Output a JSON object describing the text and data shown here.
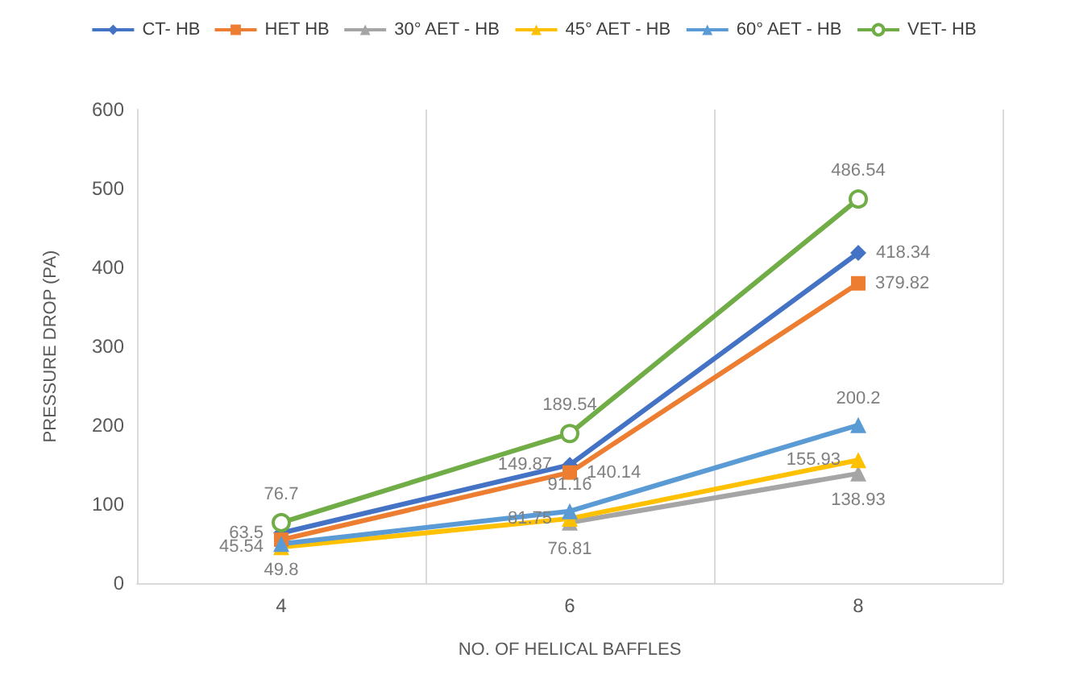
{
  "chart_data": {
    "type": "line",
    "xlabel": "NO. OF HELICAL BAFFLES",
    "ylabel": "PRESSURE DROP (PA)",
    "categories": [
      "4",
      "6",
      "8"
    ],
    "ylim": [
      0,
      600
    ],
    "yticks": [
      0,
      100,
      200,
      300,
      400,
      500,
      600
    ],
    "grid": "x",
    "legend": "top",
    "series": [
      {
        "name": "CT- HB",
        "color": "#4472c4",
        "marker": "diamond",
        "values": [
          63.5,
          149.87,
          418.34
        ],
        "value_labels": [
          "63.5",
          "149.87",
          "418.34"
        ]
      },
      {
        "name": "HET HB",
        "color": "#ed7d31",
        "marker": "square",
        "values": [
          55,
          140.14,
          379.82
        ],
        "value_labels": [
          null,
          "140.14",
          "379.82"
        ]
      },
      {
        "name": "30° AET - HB",
        "color": "#a5a5a5",
        "marker": "triangle",
        "values": [
          null,
          76.81,
          138.93
        ],
        "value_labels": [
          null,
          "76.81",
          "138.93"
        ]
      },
      {
        "name": "45° AET - HB",
        "color": "#ffc000",
        "marker": "triangle",
        "values": [
          45.54,
          81.75,
          155.93
        ],
        "value_labels": [
          "45.54",
          "81.75",
          "155.93"
        ]
      },
      {
        "name": "60° AET - HB",
        "color": "#5b9bd5",
        "marker": "triangle",
        "values": [
          49.8,
          91.16,
          200.2
        ],
        "value_labels": [
          "49.8",
          "91.16",
          "200.2"
        ]
      },
      {
        "name": "VET- HB",
        "color": "#70ad47",
        "marker": "emptyCircle",
        "values": [
          76.7,
          189.54,
          486.54
        ],
        "value_labels": [
          "76.7",
          "189.54",
          "486.54"
        ]
      }
    ]
  }
}
